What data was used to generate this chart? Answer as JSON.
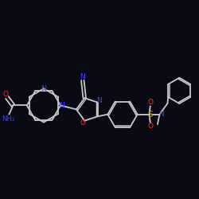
{
  "background_color": "#0a0a14",
  "bond_color": "#c8c8c8",
  "atom_colors": {
    "N": "#4040ff",
    "O": "#ff3030",
    "S": "#b8a000",
    "C": "#c8c8c8"
  },
  "figsize": [
    2.5,
    2.5
  ],
  "dpi": 100
}
